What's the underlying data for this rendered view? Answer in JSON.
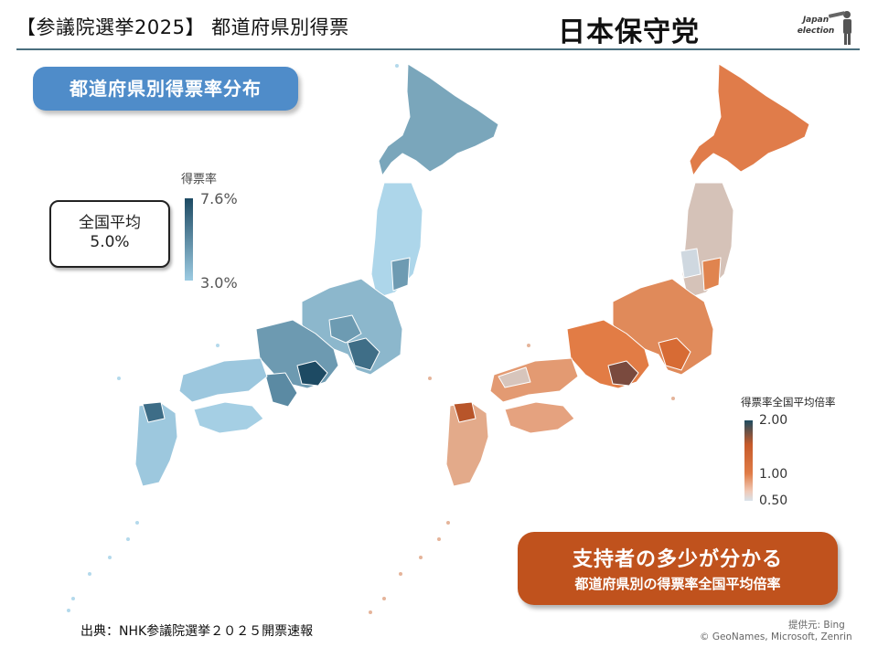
{
  "header": {
    "title": "【参議院選挙2025】 都道府県別得票",
    "party": "日本保守党",
    "logo_text_1": "Japan",
    "logo_text_2": "election"
  },
  "left_map": {
    "label": "都道府県別得票率分布",
    "average_label": "全国平均",
    "average_value": "5.0%",
    "legend_title": "得票率",
    "legend_max": "7.6%",
    "legend_min": "3.0%"
  },
  "right_map": {
    "legend_title": "得票率全国平均倍率",
    "legend_top": "2.00",
    "legend_mid": "1.00",
    "legend_bottom": "0.50",
    "callout_main": "支持者の多少が分かる",
    "callout_sub": "都道府県別の得票率全国平均倍率"
  },
  "footer": {
    "source": "出典：NHK参議院選挙２０２５開票速報",
    "credit_line1": "提供元: Bing",
    "credit_line2": "© GeoNames, Microsoft, Zenrin"
  },
  "colors": {
    "header_rule": "#4a6f7e",
    "pill_blue": "#4f8cc9",
    "callout_orange": "#c0521d",
    "map_left_low": "#a9d3e8",
    "map_left_mid": "#5f8ea6",
    "map_left_high": "#1d4a63",
    "map_right_low": "#d8c6bd",
    "map_right_mid": "#e07c47",
    "map_right_high": "#7a4a3e"
  }
}
